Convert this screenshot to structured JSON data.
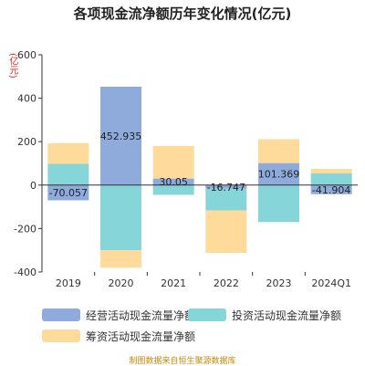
{
  "title": "各项现金流净额历年变化情况(亿元)",
  "unit_label": "(亿元)",
  "footer": "制图数据来自恒生聚源数据库",
  "chart_data": {
    "type": "bar",
    "stacked": true,
    "categories": [
      "2019",
      "2020",
      "2021",
      "2022",
      "2023",
      "2024Q1"
    ],
    "ylim": [
      -400,
      600
    ],
    "yticks": [
      -400,
      -200,
      0,
      200,
      400,
      600
    ],
    "series": [
      {
        "name": "经营活动现金流量净额",
        "color": "#8fabdc",
        "values": [
          -70.057,
          452.935,
          30.05,
          -16.747,
          101.369,
          -41.904
        ]
      },
      {
        "name": "投资活动现金流量净额",
        "color": "#86d6d9",
        "values": [
          98,
          -300,
          -45,
          -100,
          -170,
          55
        ]
      },
      {
        "name": "筹资活动现金流量净额",
        "color": "#ffdb9b",
        "values": [
          95,
          -80,
          150,
          -195,
          110,
          20
        ]
      }
    ],
    "data_labels": [
      "-70.057",
      "452.935",
      "30.05",
      "-16.747",
      "101.369",
      "-41.904"
    ],
    "legend_position": "bottom",
    "grid": false
  }
}
